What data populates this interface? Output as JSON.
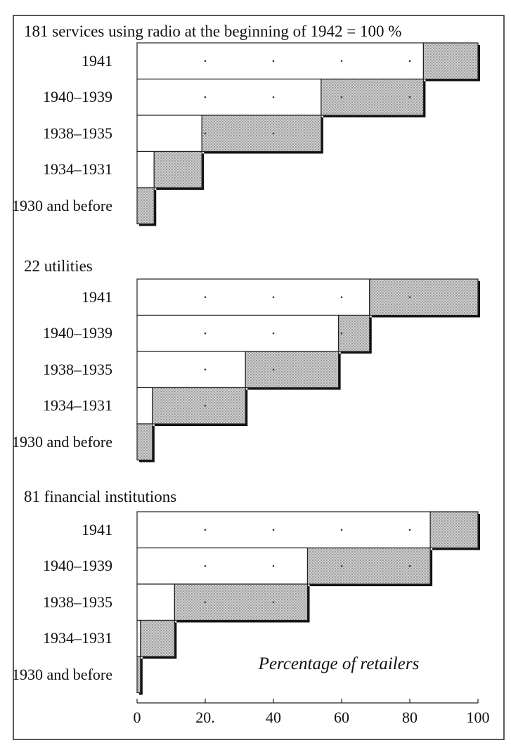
{
  "chart_data": [
    {
      "type": "bar",
      "title": "181 services using radio at the beginning of 1942 = 100 %",
      "categories": [
        "1941",
        "1940–1939",
        "1938–1935",
        "1934–1931",
        "1930 and before"
      ],
      "values": [
        16,
        30,
        35,
        14,
        5
      ],
      "xlim": [
        0,
        100
      ]
    },
    {
      "type": "bar",
      "title": "22 utilities",
      "categories": [
        "1941",
        "1940–1939",
        "1938–1935",
        "1934–1931",
        "1930 and before"
      ],
      "values": [
        31.8,
        9.1,
        27.3,
        27.3,
        4.5
      ],
      "xlim": [
        0,
        100
      ]
    },
    {
      "type": "bar",
      "title": "81 financial institutions",
      "categories": [
        "1941",
        "1940–1939",
        "1938–1935",
        "1934–1931",
        "1930 and before"
      ],
      "values": [
        14,
        36,
        39,
        10,
        1
      ],
      "xlim": [
        0,
        100
      ],
      "xticks": [
        0,
        {
          "value": 20,
          "label": "20."
        },
        40,
        60,
        80,
        100
      ],
      "xlabel": "Percentage of retailers"
    }
  ]
}
